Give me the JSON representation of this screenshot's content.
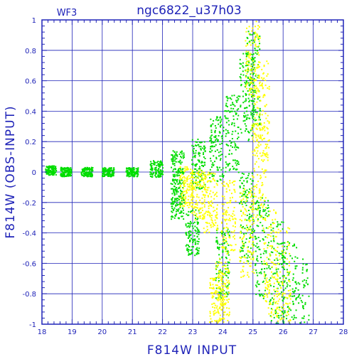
{
  "chart_data": {
    "type": "scatter",
    "title": "ngc6822_u37h03",
    "panel_label": "WF3",
    "xlabel": "F814W  INPUT",
    "ylabel": "F814W  (OBS-INPUT)",
    "xlim": [
      18,
      28
    ],
    "ylim": [
      -1,
      1
    ],
    "x_ticks": [
      18,
      19,
      20,
      21,
      22,
      23,
      24,
      25,
      26,
      27,
      28
    ],
    "y_ticks": [
      -1,
      -0.8,
      -0.6,
      -0.4,
      -0.2,
      0,
      0.2,
      0.4,
      0.6,
      0.8,
      1
    ],
    "x_tick_labels": [
      "18",
      "19",
      "20",
      "21",
      "22",
      "23",
      "24",
      "25",
      "26",
      "27",
      "28"
    ],
    "y_tick_labels": [
      "-1",
      "-0.8",
      "-0.6",
      "-0.4",
      "-0.2",
      "0",
      "0.2",
      "0.4",
      "0.6",
      "0.8",
      "1"
    ],
    "grid": true,
    "colors": {
      "axis": "#1f23b8",
      "grid": "#1f23b8",
      "series_a": "#00dd00",
      "series_b": "#ffff00"
    },
    "series": [
      {
        "color": "#00dd00",
        "description_points": [
          [
            18.3,
            0.01
          ],
          [
            18.8,
            0.0
          ],
          [
            19.5,
            0.0
          ],
          [
            20.2,
            0.0
          ],
          [
            21.0,
            0.0
          ],
          [
            21.8,
            0.02
          ],
          [
            22.5,
            0.03
          ],
          [
            23.2,
            0.05
          ],
          [
            23.8,
            0.15
          ],
          [
            24.3,
            0.25
          ],
          [
            24.8,
            0.5
          ],
          [
            25.0,
            0.62
          ],
          [
            24.8,
            -0.3
          ],
          [
            25.3,
            -0.5
          ],
          [
            25.8,
            -0.7
          ],
          [
            26.2,
            -0.85
          ],
          [
            26.6,
            -1.0
          ],
          [
            23.0,
            -0.4
          ],
          [
            22.5,
            -0.2
          ],
          [
            24.0,
            -0.6
          ]
        ]
      },
      {
        "color": "#ffff00",
        "description_points": [
          [
            22.8,
            -0.1
          ],
          [
            23.2,
            -0.15
          ],
          [
            23.6,
            -0.2
          ],
          [
            24.2,
            -0.3
          ],
          [
            24.8,
            -0.4
          ],
          [
            25.2,
            0.0
          ],
          [
            25.3,
            0.4
          ],
          [
            25.0,
            0.8
          ],
          [
            25.6,
            -0.6
          ],
          [
            26.0,
            -0.75
          ],
          [
            24.0,
            -0.8
          ],
          [
            23.8,
            -0.9
          ]
        ]
      }
    ]
  }
}
